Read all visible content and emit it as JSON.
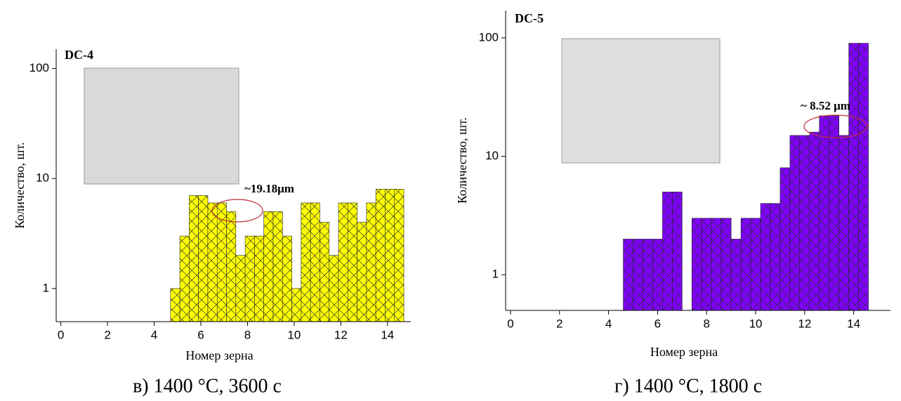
{
  "chart_data": [
    {
      "type": "histogram",
      "panel_label": "DC-4",
      "annotation": "~19.18μm",
      "caption": "в) 1400 °C, 3600 с",
      "x_label": "Номер зерна",
      "y_label": "Количество, шт.",
      "color": "#ffff00",
      "log_y": true,
      "bins": [
        4.7,
        5.1,
        5.5,
        5.9,
        6.3,
        6.7,
        7.1,
        7.5,
        7.9,
        8.3,
        8.7,
        9.1,
        9.5,
        9.9,
        10.3,
        10.7,
        11.1,
        11.5,
        11.9,
        12.3,
        12.7,
        13.1,
        13.5,
        13.9,
        14.3,
        14.7
      ],
      "values": [
        1,
        3,
        7,
        7,
        6,
        6,
        5,
        2,
        3,
        3,
        5,
        5,
        3,
        1,
        6,
        6,
        4,
        2,
        6,
        6,
        4,
        6,
        8,
        8,
        8
      ],
      "xlim": [
        -0.2,
        15
      ],
      "xticks": [
        0,
        2,
        4,
        6,
        8,
        10,
        12,
        14
      ],
      "ylim": [
        0.5,
        150
      ],
      "yticks": [
        1,
        10,
        100
      ]
    },
    {
      "type": "histogram",
      "panel_label": "DC-5",
      "annotation": "~ 8.52 μm",
      "caption": "г) 1400 °C, 1800 с",
      "x_label": "Номер зерна",
      "y_label": "Количество, шт.",
      "color": "#8000ff",
      "log_y": true,
      "bins": [
        4.6,
        5.0,
        5.4,
        5.8,
        6.2,
        6.6,
        7.0,
        7.4,
        7.8,
        8.2,
        8.6,
        9.0,
        9.4,
        9.8,
        10.2,
        10.6,
        11.0,
        11.4,
        11.8,
        12.2,
        12.6,
        13.0,
        13.4,
        13.8,
        14.2,
        14.6
      ],
      "values": [
        2,
        2,
        2,
        2,
        5,
        5,
        0,
        3,
        3,
        3,
        3,
        2,
        3,
        3,
        4,
        4,
        8,
        15,
        15,
        16,
        22,
        22,
        15,
        90,
        90
      ],
      "xlim": [
        -0.2,
        15.5
      ],
      "xticks": [
        0,
        2,
        4,
        6,
        8,
        10,
        12,
        14
      ],
      "ylim": [
        0.5,
        170
      ],
      "yticks": [
        1,
        10,
        100
      ]
    }
  ]
}
